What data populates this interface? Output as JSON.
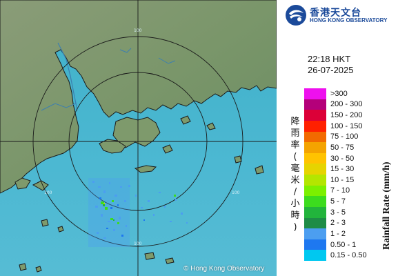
{
  "header": {
    "org_name_cn": "香港天文台",
    "org_name_en": "HONG KONG OBSERVATORY"
  },
  "timestamp": {
    "time": "22:18 HKT",
    "date": "26-07-2025"
  },
  "legend": {
    "title_cn": "降雨率(毫米/小時)",
    "title_en": "Rainfall Rate (mm/h)",
    "items": [
      {
        "label": ">300",
        "color": "#ee10ee"
      },
      {
        "label": "200 - 300",
        "color": "#b4007a"
      },
      {
        "label": "150 - 200",
        "color": "#dc0038"
      },
      {
        "label": "100 - 150",
        "color": "#ff2000"
      },
      {
        "label": "75 - 100",
        "color": "#f26a00"
      },
      {
        "label": "50 - 75",
        "color": "#f4a300"
      },
      {
        "label": "30 - 50",
        "color": "#ffc300"
      },
      {
        "label": "15 - 30",
        "color": "#e6d400"
      },
      {
        "label": "10 - 15",
        "color": "#b4e600"
      },
      {
        "label": "7 - 10",
        "color": "#7cf000"
      },
      {
        "label": "5 - 7",
        "color": "#3cdc1e"
      },
      {
        "label": "3 - 5",
        "color": "#22b43c"
      },
      {
        "label": "2 - 3",
        "color": "#1e8c46"
      },
      {
        "label": "1 - 2",
        "color": "#4c9ef0"
      },
      {
        "label": "0.50 - 1",
        "color": "#1e78f0"
      },
      {
        "label": "0.15 - 0.50",
        "color": "#00c8f0"
      }
    ]
  },
  "map": {
    "range_ring_labels": [
      "100",
      "100",
      "100",
      "100"
    ],
    "copyright": "© Hong Kong Observatory",
    "colors": {
      "sea": "#4fb4d0",
      "land": "#7d9a6a",
      "coastline": "#1a1a1a"
    }
  }
}
